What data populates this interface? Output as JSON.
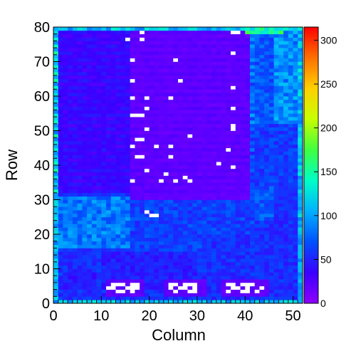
{
  "chart_data": {
    "type": "heatmap",
    "xlabel": "Column",
    "ylabel": "Row",
    "xlim": [
      0,
      52
    ],
    "ylim": [
      0,
      80
    ],
    "x_ticks": [
      0,
      10,
      20,
      30,
      40,
      50
    ],
    "y_ticks": [
      0,
      10,
      20,
      30,
      40,
      50,
      60,
      70,
      80
    ],
    "colorbar": {
      "min": 0,
      "max": 315,
      "ticks": [
        0,
        50,
        100,
        150,
        200,
        250,
        300
      ],
      "palette": [
        "#8f00ff",
        "#3a00ff",
        "#0050ff",
        "#00b0ff",
        "#00ffc8",
        "#40ff40",
        "#c8ff00",
        "#ffd000",
        "#ff7000",
        "#ff0000"
      ]
    },
    "grid": false,
    "regions": [
      {
        "cols": [
          0,
          52
        ],
        "rows": [
          0,
          80
        ],
        "value": 55
      },
      {
        "cols": [
          16,
          42
        ],
        "rows": [
          30,
          80
        ],
        "value": 18
      },
      {
        "cols": [
          0,
          16
        ],
        "rows": [
          32,
          80
        ],
        "value": 32
      },
      {
        "cols": [
          41,
          46
        ],
        "rows": [
          24,
          80
        ],
        "value": 70
      },
      {
        "cols": [
          46,
          51
        ],
        "rows": [
          34,
          80
        ],
        "value": 92
      },
      {
        "cols": [
          41,
          51
        ],
        "rows": [
          34,
          52
        ],
        "value": 60
      },
      {
        "cols": [
          0,
          16
        ],
        "rows": [
          16,
          31
        ],
        "value": 85
      },
      {
        "cols": [
          16,
          42
        ],
        "rows": [
          15,
          30
        ],
        "value": 62
      },
      {
        "cols": [
          10,
          30
        ],
        "rows": [
          4,
          15
        ],
        "value": 48
      },
      {
        "cols": [
          31,
          52
        ],
        "rows": [
          4,
          20
        ],
        "value": 55
      },
      {
        "cols": [
          2,
          9
        ],
        "rows": [
          4,
          9
        ],
        "value": 45
      },
      {
        "cols": [
          11,
          19
        ],
        "rows": [
          2,
          7
        ],
        "value": 20
      },
      {
        "cols": [
          23,
          32
        ],
        "rows": [
          2,
          7
        ],
        "value": 20
      },
      {
        "cols": [
          35,
          45
        ],
        "rows": [
          2,
          7
        ],
        "value": 20
      },
      {
        "cols": [
          0,
          1
        ],
        "rows": [
          0,
          80
        ],
        "value": 105
      },
      {
        "cols": [
          51,
          52
        ],
        "rows": [
          0,
          80
        ],
        "value": 110
      },
      {
        "cols": [
          0,
          52
        ],
        "rows": [
          0,
          1
        ],
        "value": 110
      },
      {
        "cols": [
          0,
          52
        ],
        "rows": [
          79,
          80
        ],
        "value": 110
      },
      {
        "cols": [
          40,
          48
        ],
        "rows": [
          78,
          80
        ],
        "value": 150
      }
    ],
    "empty_cells": [
      [
        18,
        78
      ],
      [
        37,
        78
      ],
      [
        38,
        78
      ],
      [
        15,
        76
      ],
      [
        18,
        76
      ],
      [
        37,
        72
      ],
      [
        16,
        70
      ],
      [
        25,
        70
      ],
      [
        16,
        64
      ],
      [
        26,
        64
      ],
      [
        37,
        62
      ],
      [
        16,
        59
      ],
      [
        19,
        59
      ],
      [
        24,
        59
      ],
      [
        19,
        56
      ],
      [
        37,
        56
      ],
      [
        16,
        54
      ],
      [
        17,
        54
      ],
      [
        18,
        54
      ],
      [
        37,
        51
      ],
      [
        19,
        50
      ],
      [
        37,
        50
      ],
      [
        28,
        48
      ],
      [
        17,
        47
      ],
      [
        18,
        47
      ],
      [
        16,
        45
      ],
      [
        21,
        45
      ],
      [
        24,
        45
      ],
      [
        36,
        44
      ],
      [
        17,
        42
      ],
      [
        18,
        42
      ],
      [
        24,
        42
      ],
      [
        34,
        40
      ],
      [
        37,
        39
      ],
      [
        19,
        38
      ],
      [
        23,
        37
      ],
      [
        27,
        36
      ],
      [
        16,
        35
      ],
      [
        22,
        35
      ],
      [
        25,
        35
      ],
      [
        28,
        35
      ],
      [
        19,
        26
      ],
      [
        20,
        25
      ],
      [
        21,
        25
      ],
      [
        12,
        5
      ],
      [
        13,
        5
      ],
      [
        14,
        5
      ],
      [
        16,
        5
      ],
      [
        17,
        5
      ],
      [
        11,
        4
      ],
      [
        12,
        4
      ],
      [
        15,
        4
      ],
      [
        16,
        4
      ],
      [
        17,
        4
      ],
      [
        13,
        3
      ],
      [
        14,
        3
      ],
      [
        16,
        3
      ],
      [
        24,
        5
      ],
      [
        25,
        5
      ],
      [
        27,
        5
      ],
      [
        28,
        5
      ],
      [
        29,
        5
      ],
      [
        24,
        4
      ],
      [
        26,
        4
      ],
      [
        27,
        4
      ],
      [
        29,
        4
      ],
      [
        25,
        3
      ],
      [
        28,
        3
      ],
      [
        29,
        3
      ],
      [
        36,
        5
      ],
      [
        37,
        5
      ],
      [
        39,
        5
      ],
      [
        40,
        5
      ],
      [
        41,
        5
      ],
      [
        37,
        4
      ],
      [
        38,
        4
      ],
      [
        40,
        4
      ],
      [
        43,
        4
      ],
      [
        36,
        3
      ],
      [
        39,
        3
      ],
      [
        40,
        3
      ],
      [
        42,
        3
      ]
    ]
  }
}
